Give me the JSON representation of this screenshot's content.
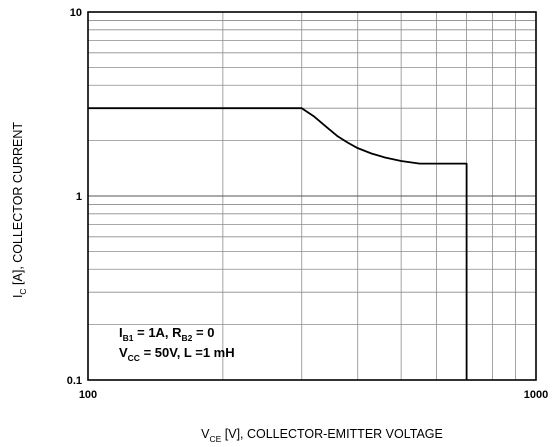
{
  "chart_data": {
    "type": "line",
    "x_scale": "log",
    "y_scale": "log",
    "xlim": [
      100,
      1000
    ],
    "ylim": [
      0.1,
      10
    ],
    "grid": true,
    "x_ticks": [
      {
        "value": 100,
        "label": "100"
      },
      {
        "value": 1000,
        "label": "1000"
      }
    ],
    "y_ticks": [
      {
        "value": 0.1,
        "label": "0.1"
      },
      {
        "value": 1,
        "label": "1"
      },
      {
        "value": 10,
        "label": "10"
      }
    ],
    "xlabel": {
      "main": "V",
      "sub": "CE",
      "rest": " [V], COLLECTOR-EMITTER VOLTAGE"
    },
    "ylabel": {
      "main": "I",
      "sub": "C",
      "rest": " [A], COLLECTOR CURRENT"
    },
    "annotation": {
      "line1": [
        {
          "t": "I"
        },
        {
          "t": "B1",
          "sub": true
        },
        {
          "t": " = 1A, R"
        },
        {
          "t": "B2",
          "sub": true
        },
        {
          "t": " = 0"
        }
      ],
      "line2": [
        {
          "t": "V"
        },
        {
          "t": "CC",
          "sub": true
        },
        {
          "t": " = 50V, L =1 mH"
        }
      ]
    },
    "series": [
      {
        "x": [
          100,
          300,
          320,
          340,
          360,
          380,
          400,
          430,
          460,
          500,
          550,
          600,
          650,
          700,
          700
        ],
        "y": [
          3.0,
          3.0,
          2.7,
          2.38,
          2.12,
          1.95,
          1.82,
          1.7,
          1.62,
          1.55,
          1.5,
          1.5,
          1.5,
          1.5,
          0.1
        ]
      }
    ]
  }
}
